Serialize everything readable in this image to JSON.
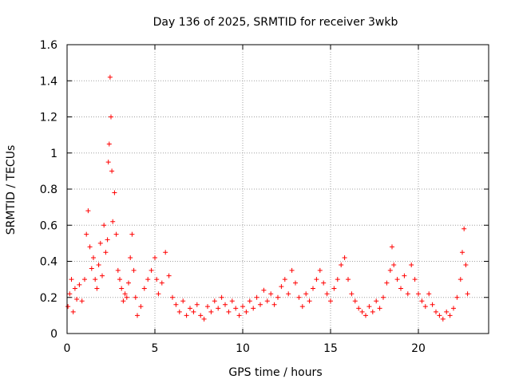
{
  "chart_data": {
    "type": "scatter",
    "title": "Day 136 of 2025, SRMTID for receiver 3wkb",
    "xlabel": "GPS time / hours",
    "ylabel": "SRMTID / TECUs",
    "xlim": [
      0,
      24
    ],
    "ylim": [
      0,
      1.6
    ],
    "xticks": [
      0,
      5,
      10,
      15,
      20
    ],
    "xtick_labels": [
      "0",
      "5",
      "10",
      "15",
      "20"
    ],
    "yticks": [
      0,
      0.2,
      0.4,
      0.6,
      0.8,
      1.0,
      1.2,
      1.4,
      1.6
    ],
    "ytick_labels": [
      "0",
      "0.2",
      "0.4",
      "0.6",
      "0.8",
      "1",
      "1.2",
      "1.4",
      "1.6"
    ],
    "grid": true,
    "marker": "+",
    "series": [
      {
        "name": "SRMTID",
        "color": "#ff0000",
        "points": [
          [
            0.05,
            0.15
          ],
          [
            0.15,
            0.22
          ],
          [
            0.25,
            0.3
          ],
          [
            0.35,
            0.12
          ],
          [
            0.45,
            0.25
          ],
          [
            0.55,
            0.19
          ],
          [
            0.7,
            0.27
          ],
          [
            0.85,
            0.18
          ],
          [
            1.0,
            0.3
          ],
          [
            1.1,
            0.55
          ],
          [
            1.2,
            0.68
          ],
          [
            1.3,
            0.48
          ],
          [
            1.4,
            0.36
          ],
          [
            1.5,
            0.42
          ],
          [
            1.6,
            0.3
          ],
          [
            1.7,
            0.25
          ],
          [
            1.8,
            0.38
          ],
          [
            1.9,
            0.5
          ],
          [
            2.0,
            0.32
          ],
          [
            2.1,
            0.6
          ],
          [
            2.2,
            0.45
          ],
          [
            2.3,
            0.52
          ],
          [
            2.35,
            0.95
          ],
          [
            2.4,
            1.05
          ],
          [
            2.45,
            1.42
          ],
          [
            2.5,
            1.2
          ],
          [
            2.55,
            0.9
          ],
          [
            2.6,
            0.62
          ],
          [
            2.7,
            0.78
          ],
          [
            2.8,
            0.55
          ],
          [
            2.9,
            0.35
          ],
          [
            3.0,
            0.3
          ],
          [
            3.1,
            0.25
          ],
          [
            3.2,
            0.18
          ],
          [
            3.3,
            0.22
          ],
          [
            3.4,
            0.2
          ],
          [
            3.5,
            0.28
          ],
          [
            3.6,
            0.42
          ],
          [
            3.7,
            0.55
          ],
          [
            3.8,
            0.35
          ],
          [
            3.9,
            0.2
          ],
          [
            4.0,
            0.1
          ],
          [
            4.2,
            0.15
          ],
          [
            4.4,
            0.25
          ],
          [
            4.6,
            0.3
          ],
          [
            4.8,
            0.35
          ],
          [
            5.0,
            0.42
          ],
          [
            5.1,
            0.3
          ],
          [
            5.2,
            0.22
          ],
          [
            5.4,
            0.28
          ],
          [
            5.6,
            0.45
          ],
          [
            5.8,
            0.32
          ],
          [
            6.0,
            0.2
          ],
          [
            6.2,
            0.16
          ],
          [
            6.4,
            0.12
          ],
          [
            6.6,
            0.18
          ],
          [
            6.8,
            0.1
          ],
          [
            7.0,
            0.14
          ],
          [
            7.2,
            0.12
          ],
          [
            7.4,
            0.16
          ],
          [
            7.6,
            0.1
          ],
          [
            7.8,
            0.08
          ],
          [
            8.0,
            0.15
          ],
          [
            8.2,
            0.12
          ],
          [
            8.4,
            0.18
          ],
          [
            8.6,
            0.14
          ],
          [
            8.8,
            0.2
          ],
          [
            9.0,
            0.16
          ],
          [
            9.2,
            0.12
          ],
          [
            9.4,
            0.18
          ],
          [
            9.6,
            0.14
          ],
          [
            9.8,
            0.1
          ],
          [
            10.0,
            0.15
          ],
          [
            10.2,
            0.12
          ],
          [
            10.4,
            0.18
          ],
          [
            10.6,
            0.14
          ],
          [
            10.8,
            0.2
          ],
          [
            11.0,
            0.16
          ],
          [
            11.2,
            0.24
          ],
          [
            11.4,
            0.18
          ],
          [
            11.6,
            0.22
          ],
          [
            11.8,
            0.16
          ],
          [
            12.0,
            0.2
          ],
          [
            12.2,
            0.26
          ],
          [
            12.4,
            0.3
          ],
          [
            12.6,
            0.22
          ],
          [
            12.8,
            0.35
          ],
          [
            13.0,
            0.28
          ],
          [
            13.2,
            0.2
          ],
          [
            13.4,
            0.15
          ],
          [
            13.6,
            0.22
          ],
          [
            13.8,
            0.18
          ],
          [
            14.0,
            0.25
          ],
          [
            14.2,
            0.3
          ],
          [
            14.4,
            0.35
          ],
          [
            14.6,
            0.28
          ],
          [
            14.8,
            0.22
          ],
          [
            15.0,
            0.18
          ],
          [
            15.2,
            0.25
          ],
          [
            15.4,
            0.3
          ],
          [
            15.6,
            0.38
          ],
          [
            15.8,
            0.42
          ],
          [
            16.0,
            0.3
          ],
          [
            16.2,
            0.22
          ],
          [
            16.4,
            0.18
          ],
          [
            16.6,
            0.14
          ],
          [
            16.8,
            0.12
          ],
          [
            17.0,
            0.1
          ],
          [
            17.2,
            0.15
          ],
          [
            17.4,
            0.12
          ],
          [
            17.6,
            0.18
          ],
          [
            17.8,
            0.14
          ],
          [
            18.0,
            0.2
          ],
          [
            18.2,
            0.28
          ],
          [
            18.4,
            0.35
          ],
          [
            18.5,
            0.48
          ],
          [
            18.6,
            0.38
          ],
          [
            18.8,
            0.3
          ],
          [
            19.0,
            0.25
          ],
          [
            19.2,
            0.32
          ],
          [
            19.4,
            0.22
          ],
          [
            19.6,
            0.38
          ],
          [
            19.8,
            0.3
          ],
          [
            20.0,
            0.22
          ],
          [
            20.2,
            0.18
          ],
          [
            20.4,
            0.15
          ],
          [
            20.6,
            0.22
          ],
          [
            20.8,
            0.16
          ],
          [
            21.0,
            0.12
          ],
          [
            21.2,
            0.1
          ],
          [
            21.4,
            0.08
          ],
          [
            21.6,
            0.12
          ],
          [
            21.8,
            0.1
          ],
          [
            22.0,
            0.14
          ],
          [
            22.2,
            0.2
          ],
          [
            22.4,
            0.3
          ],
          [
            22.5,
            0.45
          ],
          [
            22.6,
            0.58
          ],
          [
            22.7,
            0.38
          ],
          [
            22.8,
            0.22
          ]
        ]
      }
    ]
  }
}
